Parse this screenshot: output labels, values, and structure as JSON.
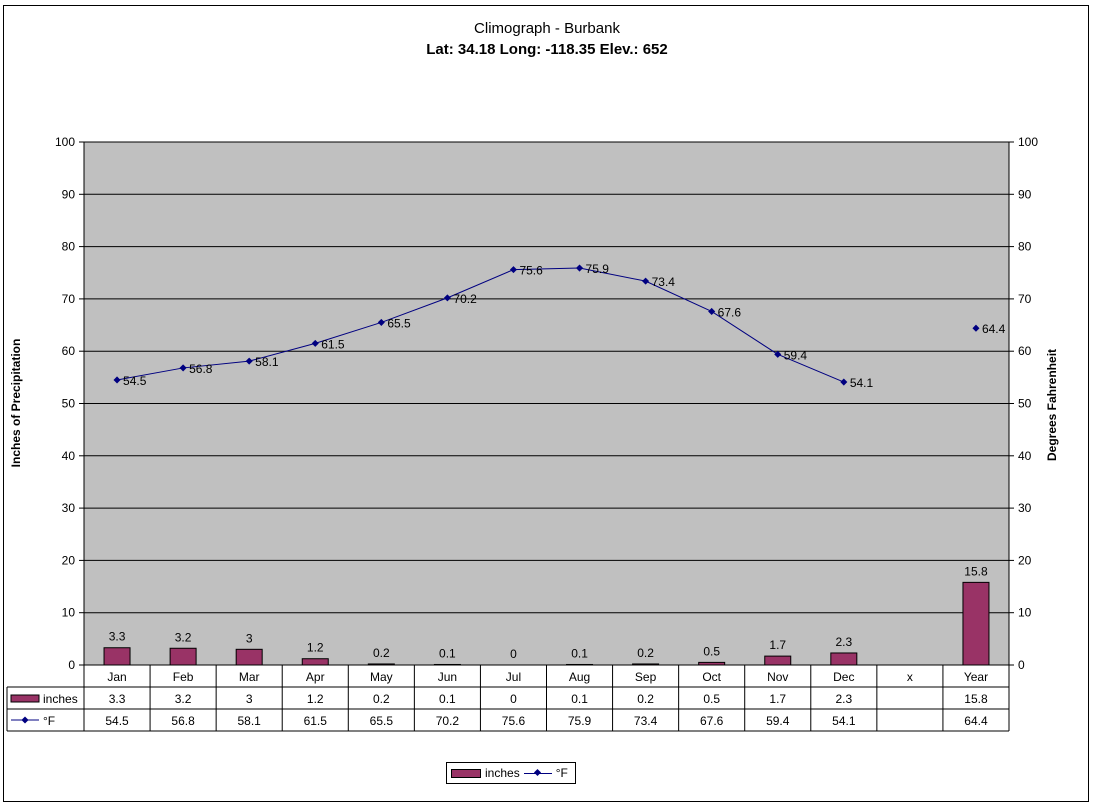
{
  "chart_data": {
    "type": "bar",
    "title": "Climograph - Burbank",
    "subtitle": "Lat: 34.18 Long: -118.35 Elev.: 652",
    "categories": [
      "Jan",
      "Feb",
      "Mar",
      "Apr",
      "May",
      "Jun",
      "Jul",
      "Aug",
      "Sep",
      "Oct",
      "Nov",
      "Dec",
      "x",
      "Year"
    ],
    "series": [
      {
        "name": "inches",
        "type": "bar",
        "axis": "left",
        "values": [
          3.3,
          3.2,
          3,
          1.2,
          0.2,
          0.1,
          0,
          0.1,
          0.2,
          0.5,
          1.7,
          2.3,
          null,
          15.8
        ]
      },
      {
        "name": "°F",
        "type": "line",
        "axis": "right",
        "values": [
          54.5,
          56.8,
          58.1,
          61.5,
          65.5,
          70.2,
          75.6,
          75.9,
          73.4,
          67.6,
          59.4,
          54.1,
          null,
          64.4
        ]
      }
    ],
    "ylabel": "Inches of Precipitation",
    "y2label": "Degrees Fahrenheit",
    "ylim": [
      0,
      100
    ],
    "y2lim": [
      0,
      100
    ],
    "yticks": [
      0,
      10,
      20,
      30,
      40,
      50,
      60,
      70,
      80,
      90,
      100
    ],
    "grid": true,
    "legend": "bottom",
    "data_table": true,
    "colors": {
      "bar": "#993366",
      "line": "#000080",
      "plot_bg": "#c0c0c0"
    }
  }
}
